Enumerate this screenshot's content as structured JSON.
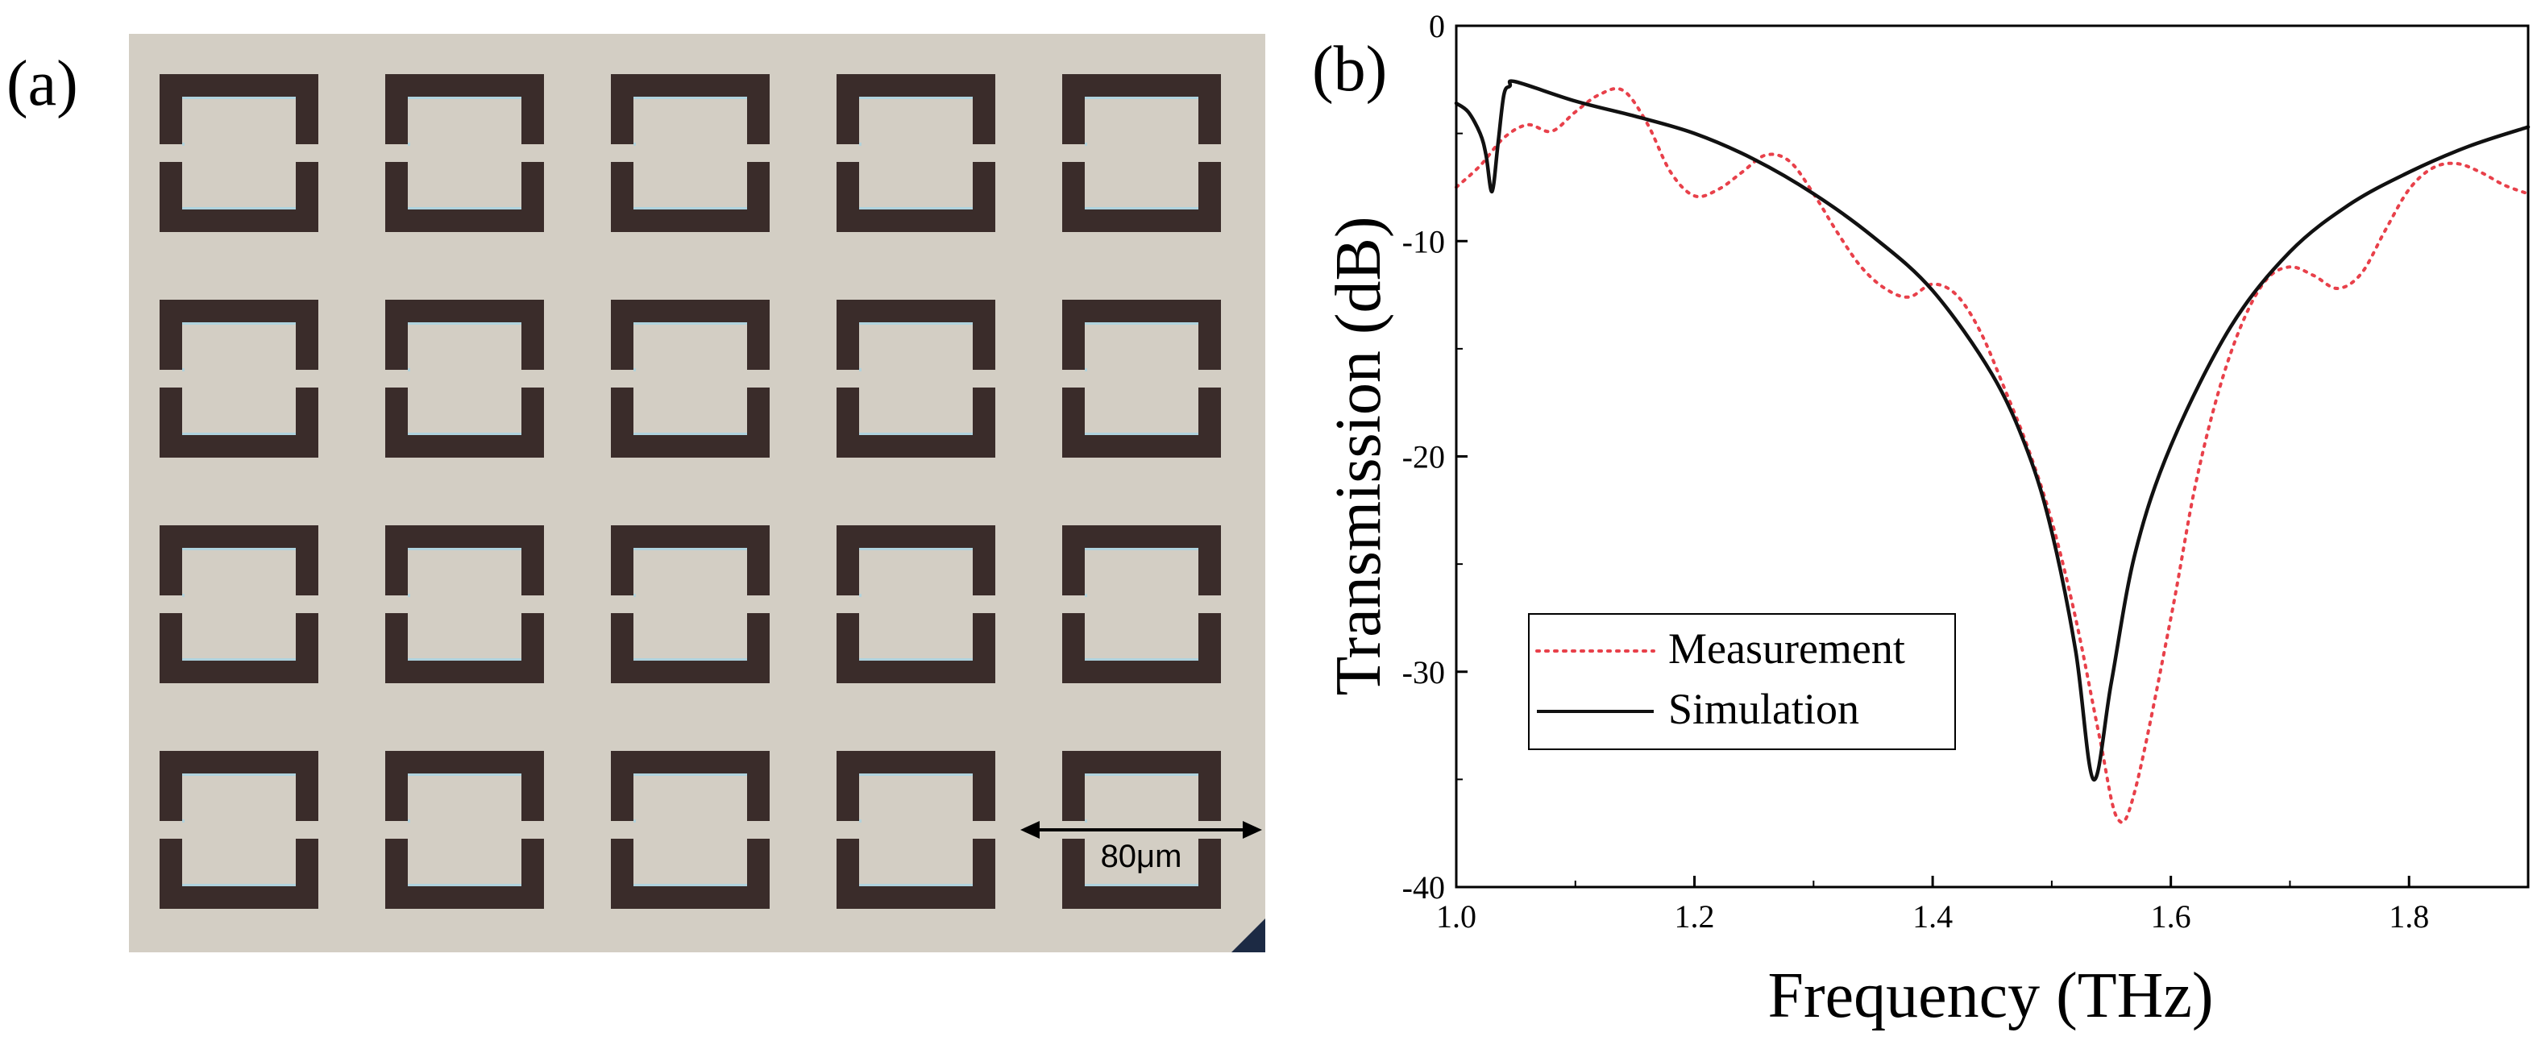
{
  "panel_labels": {
    "a": "(a)",
    "b": "(b)"
  },
  "micrograph": {
    "rows": 4,
    "cols": 5,
    "scale_bar_label": "80μm"
  },
  "chart_data": {
    "type": "line",
    "title": "",
    "xlabel": "Frequency (THz)",
    "ylabel": "Transmission (dB)",
    "xlim": [
      1.0,
      1.9
    ],
    "ylim": [
      -40,
      0
    ],
    "xticks": [
      1.0,
      1.2,
      1.4,
      1.6,
      1.8
    ],
    "xtick_labels": [
      "1.0",
      "1.2",
      "1.4",
      "1.6",
      "1.8"
    ],
    "yticks": [
      -40,
      -30,
      -20,
      -10,
      0
    ],
    "ytick_labels": [
      "-40",
      "-30",
      "-20",
      "-10",
      "0"
    ],
    "grid": false,
    "legend_position": "lower-left",
    "series": [
      {
        "name": "Measurement",
        "color": "#e8404a",
        "style": "dotted",
        "x": [
          1.0,
          1.02,
          1.04,
          1.06,
          1.08,
          1.1,
          1.12,
          1.14,
          1.16,
          1.18,
          1.2,
          1.22,
          1.24,
          1.26,
          1.28,
          1.3,
          1.32,
          1.34,
          1.36,
          1.38,
          1.4,
          1.42,
          1.44,
          1.46,
          1.48,
          1.5,
          1.52,
          1.54,
          1.555,
          1.57,
          1.6,
          1.62,
          1.64,
          1.66,
          1.68,
          1.7,
          1.72,
          1.74,
          1.76,
          1.78,
          1.8,
          1.82,
          1.84,
          1.86,
          1.88,
          1.9
        ],
        "y": [
          -7.5,
          -6.5,
          -5.2,
          -4.6,
          -4.9,
          -4.0,
          -3.2,
          -3.0,
          -4.5,
          -6.8,
          -7.9,
          -7.6,
          -6.8,
          -6.0,
          -6.3,
          -7.8,
          -9.6,
          -11.2,
          -12.2,
          -12.6,
          -12.0,
          -12.5,
          -14.2,
          -16.8,
          -19.6,
          -23.0,
          -27.5,
          -33.0,
          -36.8,
          -35.5,
          -27.5,
          -21.5,
          -17.0,
          -13.8,
          -11.8,
          -11.2,
          -11.6,
          -12.2,
          -11.5,
          -9.5,
          -7.6,
          -6.6,
          -6.4,
          -6.8,
          -7.4,
          -7.8
        ]
      },
      {
        "name": "Simulation",
        "color": "#111111",
        "style": "solid",
        "x": [
          1.0,
          1.01,
          1.02,
          1.025,
          1.03,
          1.035,
          1.04,
          1.045,
          1.05,
          1.1,
          1.15,
          1.2,
          1.25,
          1.3,
          1.35,
          1.4,
          1.45,
          1.48,
          1.5,
          1.52,
          1.535,
          1.55,
          1.57,
          1.6,
          1.65,
          1.7,
          1.75,
          1.8,
          1.85,
          1.9
        ],
        "y": [
          -3.6,
          -4.0,
          -5.0,
          -6.0,
          -7.7,
          -5.5,
          -3.2,
          -2.8,
          -2.6,
          -3.5,
          -4.2,
          -5.0,
          -6.2,
          -7.8,
          -9.8,
          -12.3,
          -16.2,
          -19.8,
          -23.5,
          -29.0,
          -35.0,
          -30.5,
          -24.5,
          -19.5,
          -14.0,
          -10.5,
          -8.3,
          -6.8,
          -5.6,
          -4.7
        ]
      }
    ]
  }
}
